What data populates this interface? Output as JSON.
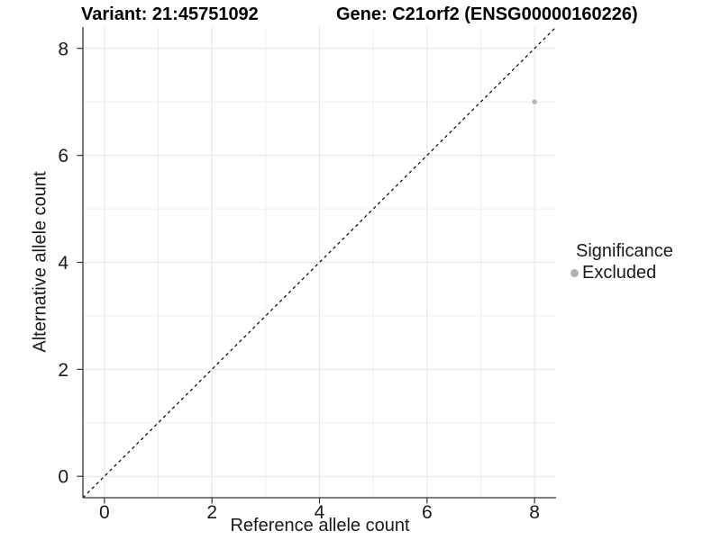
{
  "titles": {
    "variant": "Variant: 21:45751092",
    "gene": "Gene: C21orf2 (ENSG00000160226)"
  },
  "chart_data": {
    "type": "scatter",
    "xlabel": "Reference allele count",
    "ylabel": "Alternative allele count",
    "xlim": [
      -0.4,
      8.4
    ],
    "ylim": [
      -0.4,
      8.4
    ],
    "xticks": [
      0,
      2,
      4,
      6,
      8
    ],
    "yticks": [
      0,
      2,
      4,
      6,
      8
    ],
    "minor_xticks": [
      1,
      3,
      5,
      7
    ],
    "minor_yticks": [
      1,
      3,
      5,
      7
    ],
    "grid": "major-and-minor",
    "series": [
      {
        "name": "Excluded",
        "color": "#b2b2b2",
        "points": [
          {
            "x": 8,
            "y": 7
          }
        ]
      }
    ],
    "reference_line": {
      "type": "identity",
      "from": [
        -0.4,
        -0.4
      ],
      "to": [
        8.4,
        8.4
      ],
      "style": "dashed",
      "color": "#000000"
    },
    "legend": {
      "title": "Significance",
      "position": "right",
      "entries": [
        {
          "label": "Excluded",
          "color": "#b2b2b2"
        }
      ]
    }
  },
  "colors": {
    "background": "#ffffff",
    "axis_line": "#333333",
    "tick_mark": "#333333",
    "tick_label": "#1a1a1a",
    "grid_major": "#e4e4e4",
    "grid_minor": "#efefef",
    "point": "#b2b2b2"
  }
}
